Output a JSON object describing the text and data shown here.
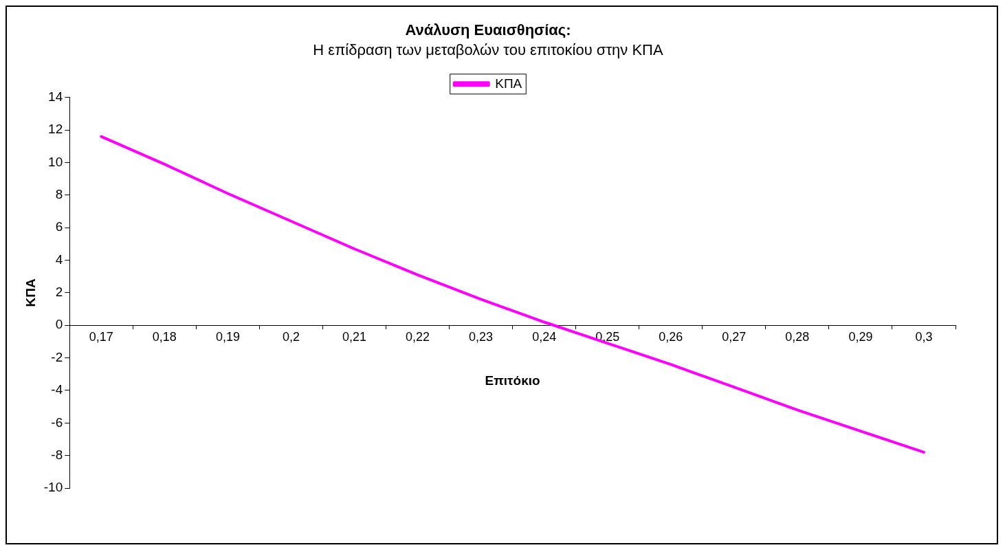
{
  "chart_data": {
    "type": "line",
    "title": "Ανάλυση Ευαισθησίας:",
    "subtitle": "Η επίδραση των μεταβολών του επιτοκίου στην ΚΠΑ",
    "xlabel": "Επιτόκιο",
    "ylabel": "ΚΠΑ",
    "categories": [
      "0,17",
      "0,18",
      "0,19",
      "0,2",
      "0,21",
      "0,22",
      "0,23",
      "0,24",
      "0,25",
      "0,26",
      "0,27",
      "0,28",
      "0,29",
      "0,3"
    ],
    "series": [
      {
        "name": "ΚΠΑ",
        "color": "#ff00ff",
        "values": [
          11.6,
          9.9,
          8.1,
          6.4,
          4.7,
          3.1,
          1.6,
          0.2,
          -1.1,
          -2.4,
          -3.8,
          -5.2,
          -6.5,
          -7.8
        ]
      }
    ],
    "ylim": [
      -10,
      14
    ],
    "yticks": [
      -10,
      -8,
      -6,
      -4,
      -2,
      0,
      2,
      4,
      6,
      8,
      10,
      12,
      14
    ],
    "grid": false,
    "legend": "top",
    "marker": "none",
    "line_style": "solid"
  }
}
